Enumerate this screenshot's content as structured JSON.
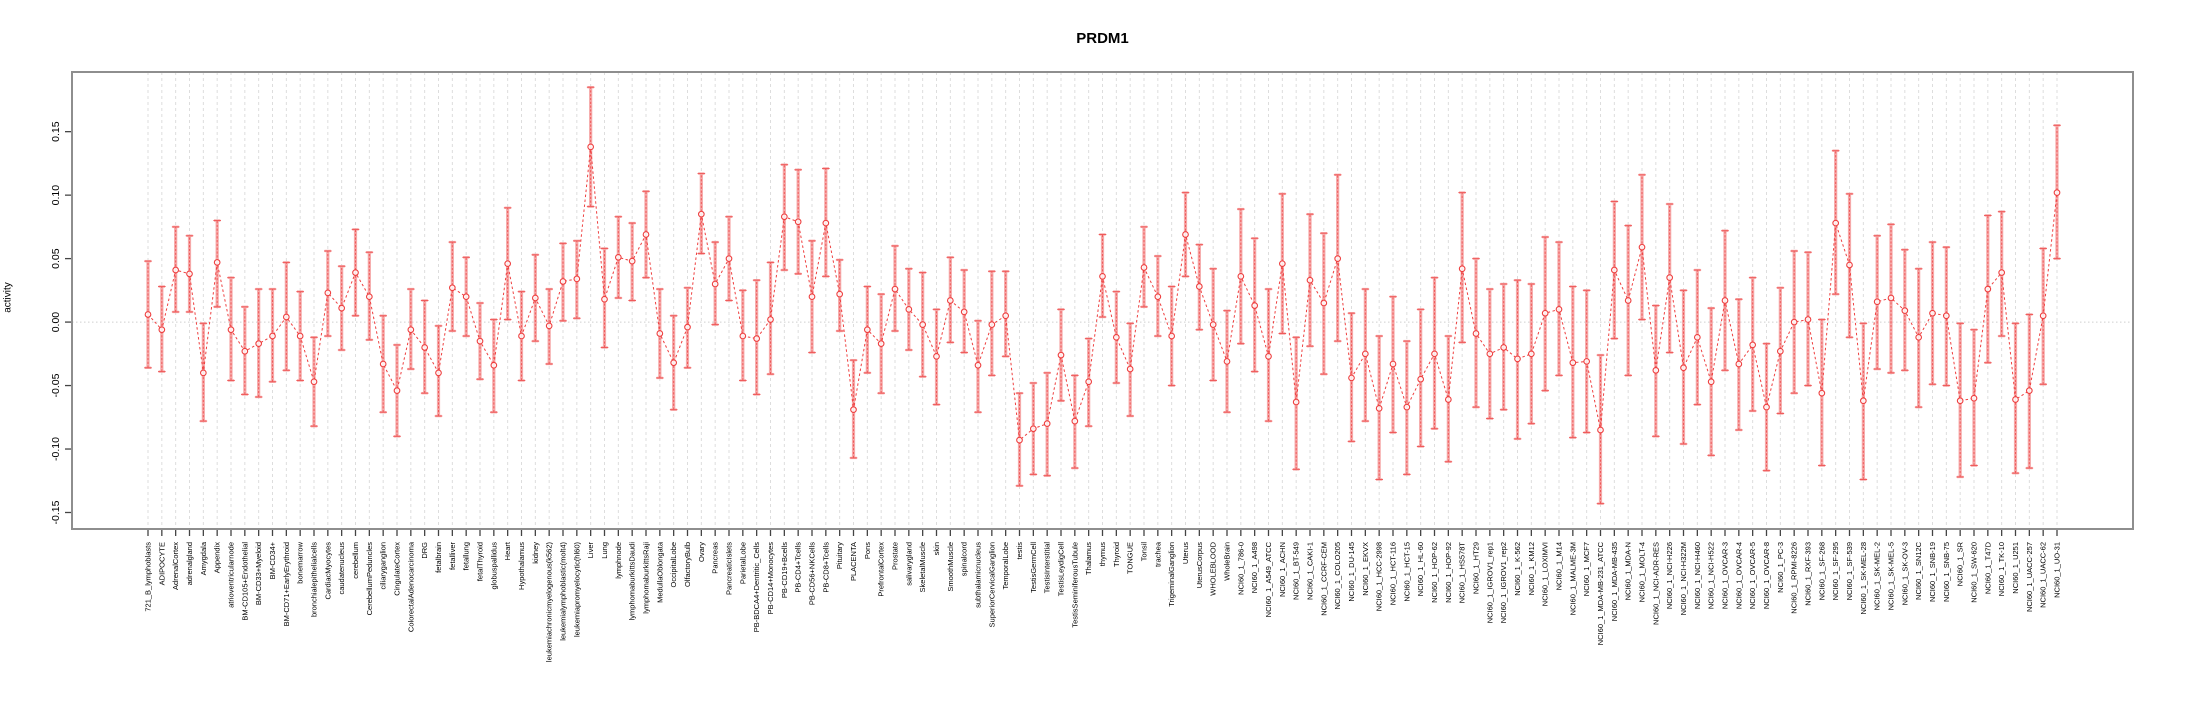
{
  "title": "PRDM1",
  "chart_data": {
    "type": "scatter",
    "title": "PRDM1",
    "xlabel": "",
    "ylabel": "activity",
    "ylim": [
      -0.163,
      0.197
    ],
    "yticks": [
      "-0.15",
      "-0.10",
      "-0.05",
      "0.00",
      "0.05",
      "0.10",
      "0.15"
    ],
    "grid": {
      "vertical_gridlines": "dashed light gray per category",
      "zero_line": "dotted light gray",
      "legend": "none"
    },
    "colors": {
      "point": "#ee3f3f",
      "line": "#ee3f3f",
      "errorbar_thick": "#f6a8a8",
      "errorbar_thin": "#ef5a5a",
      "gridline": "#dddddd",
      "box": "#8e8e8e",
      "tick": "#444444"
    },
    "categories": [
      "721_B_lymphoblasts",
      "ADIPOCYTE",
      "AdrenalCortex",
      "adrenalgland",
      "Amygdala",
      "Appendix",
      "atrioventricularnode",
      "BM-CD105+Endothelial",
      "BM-CD33+Myeloid",
      "BM-CD34+",
      "BM-CD71+EarlyErythroid",
      "bonemarrow",
      "bronchialepithelialcells",
      "CardiacMyocytes",
      "caudatenucleus",
      "cerebellum",
      "CerebellumPeduncles",
      "ciliaryganglion",
      "CingulateCortex",
      "ColorectalAdenocarcinoma",
      "DRG",
      "fetalbrain",
      "fetalliver",
      "fetallung",
      "fetalThyroid",
      "globuspallidus",
      "Heart",
      "Hypothalamus",
      "kidney",
      "leukemiachronicmyelogenous(k562)",
      "leukemialymphoblastic(molt4)",
      "leukemiapromyelocytic(hl60)",
      "Liver",
      "Lung",
      "lymphnode",
      "lymphomaburkittsDaudi",
      "lymphomaburkittsRaji",
      "MedullaOblongata",
      "OccipitalLobe",
      "OlfactoryBulb",
      "Ovary",
      "Pancreas",
      "PancreaticIslets",
      "ParietalLobe",
      "PB-BDCA4+Dentritic_Cells",
      "PB-CD14+Monocytes",
      "PB-CD19+Bcells",
      "PB-CD4+Tcells",
      "PB-CD56+NKCells",
      "PB-CD8+Tcells",
      "Pituitary",
      "PLACENTA",
      "Pons",
      "PrefrontalCortex",
      "Prostate",
      "salivarygland",
      "SkeletalMuscle",
      "skin",
      "SmoothMuscle",
      "spinalcord",
      "subthalamicnucleus",
      "SuperiorCervicalGanglion",
      "TemporalLobe",
      "testis",
      "TestisGermCell",
      "TestisInterstitial",
      "TestisLeydigCell",
      "TestisSeminiferousTubule",
      "Thalamus",
      "thymus",
      "Thyroid",
      "TONGUE",
      "Tonsil",
      "trachea",
      "TrigeminalGanglion",
      "Uterus",
      "UterusCorpus",
      "WHOLEBLOOD",
      "WholeBrain",
      "NCI60_1_786-0",
      "NCI60_1_A498",
      "NCI60_1_A549_ATCC",
      "NCI60_1_ACHN",
      "NCI60_1_BT-549",
      "NCI60_1_CAKI-1",
      "NCI60_1_CCRF-CEM",
      "NCI60_1_COLO205",
      "NCI60_1_DU-145",
      "NCI60_1_EKVX",
      "NCI60_1_HCC-2998",
      "NCI60_1_HCT-116",
      "NCI60_1_HCT-15",
      "NCI60_1_HL-60",
      "NCI60_1_HOP-62",
      "NCI60_1_HOP-92",
      "NCI60_1_HS578T",
      "NCI60_1_HT29",
      "NCI60_1_IGROV1_rep1",
      "NCI60_1_IGROV1_rep2",
      "NCI60_1_K-562",
      "NCI60_1_KM12",
      "NCI60_1_LOXIMVI",
      "NCI60_1_M14",
      "NCI60_1_MALME-3M",
      "NCI60_1_MCF7",
      "NCI60_1_MDA-MB-231_ATCC",
      "NCI60_1_MDA-MB-435",
      "NCI60_1_MDA-N",
      "NCI60_1_MOLT-4",
      "NCI60_1_NCI-ADR-RES",
      "NCI60_1_NCI-H226",
      "NCI60_1_NCI-H322M",
      "NCI60_1_NCI-H460",
      "NCI60_1_NCI-H522",
      "NCI60_1_OVCAR-3",
      "NCI60_1_OVCAR-4",
      "NCI60_1_OVCAR-5",
      "NCI60_1_OVCAR-8",
      "NCI60_1_PC-3",
      "NCI60_1_RPMI-8226",
      "NCI60_1_RXF-393",
      "NCI60_1_SF-268",
      "NCI60_1_SF-295",
      "NCI60_1_SF-539",
      "NCI60_1_SK-MEL-28",
      "NCI60_1_SK-MEL-2",
      "NCI60_1_SK-MEL-5",
      "NCI60_1_SK-OV-3",
      "NCI60_1_SN12C",
      "NCI60_1_SNB-19",
      "NCI60_1_SNB-75",
      "NCI60_1_SR",
      "NCI60_1_SW-620",
      "NCI60_1_T47D",
      "NCI60_1_TK-10",
      "NCI60_1_U251",
      "NCI60_1_UACC-257",
      "NCI60_1_UACC-62",
      "NCI60_1_UO-31"
    ],
    "series": [
      {
        "name": "activity",
        "values": [
          0.006,
          -0.006,
          0.041,
          0.038,
          -0.04,
          0.047,
          -0.006,
          -0.023,
          -0.017,
          -0.011,
          0.004,
          -0.011,
          -0.047,
          0.023,
          0.011,
          0.039,
          0.02,
          -0.033,
          -0.054,
          -0.006,
          -0.02,
          -0.04,
          0.027,
          0.02,
          -0.015,
          -0.034,
          0.046,
          -0.011,
          0.019,
          -0.003,
          0.032,
          0.034,
          0.138,
          0.018,
          0.051,
          0.048,
          0.069,
          -0.009,
          -0.032,
          -0.004,
          0.085,
          0.03,
          0.05,
          -0.011,
          -0.013,
          0.002,
          0.083,
          0.079,
          0.02,
          0.078,
          0.022,
          -0.069,
          -0.006,
          -0.017,
          0.026,
          0.01,
          -0.002,
          -0.027,
          0.017,
          0.008,
          -0.034,
          -0.002,
          0.005,
          -0.093,
          -0.084,
          -0.08,
          -0.026,
          -0.078,
          -0.047,
          0.036,
          -0.012,
          -0.037,
          0.043,
          0.02,
          -0.011,
          0.069,
          0.028,
          -0.002,
          -0.031,
          0.036,
          0.013,
          -0.027,
          0.046,
          -0.063,
          0.033,
          0.015,
          0.05,
          -0.044,
          -0.025,
          -0.068,
          -0.033,
          -0.067,
          -0.045,
          -0.025,
          -0.061,
          0.042,
          -0.009,
          -0.025,
          -0.02,
          -0.029,
          -0.025,
          0.007,
          0.01,
          -0.032,
          -0.031,
          -0.085,
          0.041,
          0.017,
          0.059,
          -0.038,
          0.035,
          -0.036,
          -0.012,
          -0.047,
          0.017,
          -0.033,
          -0.018,
          -0.067,
          -0.023,
          0.0,
          0.002,
          -0.056,
          0.078,
          0.045,
          -0.062,
          0.016,
          0.019,
          0.009,
          -0.012,
          0.007,
          0.005,
          -0.062,
          -0.06,
          0.026,
          0.039,
          -0.061,
          -0.054,
          0.005,
          0.102
        ],
        "err_lo": [
          -0.036,
          -0.039,
          0.008,
          0.008,
          -0.078,
          0.012,
          -0.046,
          -0.057,
          -0.059,
          -0.047,
          -0.038,
          -0.046,
          -0.082,
          -0.011,
          -0.022,
          0.005,
          -0.014,
          -0.071,
          -0.09,
          -0.037,
          -0.056,
          -0.074,
          -0.007,
          -0.011,
          -0.045,
          -0.071,
          0.002,
          -0.046,
          -0.015,
          -0.033,
          0.001,
          0.003,
          0.091,
          -0.02,
          0.019,
          0.017,
          0.035,
          -0.044,
          -0.069,
          -0.036,
          0.054,
          -0.002,
          0.017,
          -0.046,
          -0.057,
          -0.041,
          0.041,
          0.038,
          -0.024,
          0.036,
          -0.007,
          -0.107,
          -0.04,
          -0.056,
          -0.007,
          -0.022,
          -0.043,
          -0.065,
          -0.016,
          -0.024,
          -0.071,
          -0.042,
          -0.027,
          -0.129,
          -0.12,
          -0.121,
          -0.062,
          -0.115,
          -0.082,
          0.004,
          -0.048,
          -0.074,
          0.012,
          -0.011,
          -0.05,
          0.036,
          -0.006,
          -0.046,
          -0.071,
          -0.017,
          -0.039,
          -0.078,
          -0.009,
          -0.116,
          -0.019,
          -0.041,
          -0.015,
          -0.094,
          -0.078,
          -0.124,
          -0.087,
          -0.12,
          -0.098,
          -0.084,
          -0.11,
          -0.016,
          -0.067,
          -0.076,
          -0.069,
          -0.092,
          -0.08,
          -0.054,
          -0.042,
          -0.091,
          -0.087,
          -0.143,
          -0.013,
          -0.042,
          0.002,
          -0.09,
          -0.024,
          -0.096,
          -0.065,
          -0.105,
          -0.038,
          -0.085,
          -0.07,
          -0.117,
          -0.072,
          -0.056,
          -0.05,
          -0.113,
          0.022,
          -0.012,
          -0.124,
          -0.037,
          -0.04,
          -0.038,
          -0.067,
          -0.049,
          -0.05,
          -0.122,
          -0.113,
          -0.032,
          -0.011,
          -0.119,
          -0.115,
          -0.049,
          0.05
        ],
        "err_hi": [
          0.048,
          0.028,
          0.075,
          0.068,
          -0.001,
          0.08,
          0.035,
          0.012,
          0.026,
          0.026,
          0.047,
          0.024,
          -0.012,
          0.056,
          0.044,
          0.073,
          0.055,
          0.005,
          -0.018,
          0.026,
          0.017,
          -0.003,
          0.063,
          0.051,
          0.015,
          0.002,
          0.09,
          0.024,
          0.053,
          0.026,
          0.062,
          0.064,
          0.185,
          0.058,
          0.083,
          0.078,
          0.103,
          0.026,
          0.005,
          0.027,
          0.117,
          0.063,
          0.083,
          0.025,
          0.033,
          0.047,
          0.124,
          0.12,
          0.064,
          0.121,
          0.049,
          -0.03,
          0.028,
          0.022,
          0.06,
          0.042,
          0.039,
          0.01,
          0.051,
          0.041,
          0.001,
          0.04,
          0.04,
          -0.056,
          -0.048,
          -0.04,
          0.01,
          -0.042,
          -0.013,
          0.069,
          0.024,
          -0.001,
          0.075,
          0.052,
          0.028,
          0.102,
          0.061,
          0.042,
          0.009,
          0.089,
          0.066,
          0.026,
          0.101,
          -0.012,
          0.085,
          0.07,
          0.116,
          0.007,
          0.026,
          -0.011,
          0.02,
          -0.015,
          0.01,
          0.035,
          -0.011,
          0.102,
          0.05,
          0.026,
          0.03,
          0.033,
          0.03,
          0.067,
          0.063,
          0.028,
          0.025,
          -0.026,
          0.095,
          0.076,
          0.116,
          0.013,
          0.093,
          0.025,
          0.041,
          0.011,
          0.072,
          0.018,
          0.035,
          -0.017,
          0.027,
          0.056,
          0.055,
          0.002,
          0.135,
          0.101,
          -0.001,
          0.068,
          0.077,
          0.057,
          0.042,
          0.063,
          0.059,
          -0.001,
          -0.006,
          0.084,
          0.087,
          -0.001,
          0.006,
          0.058,
          0.155
        ]
      }
    ]
  }
}
